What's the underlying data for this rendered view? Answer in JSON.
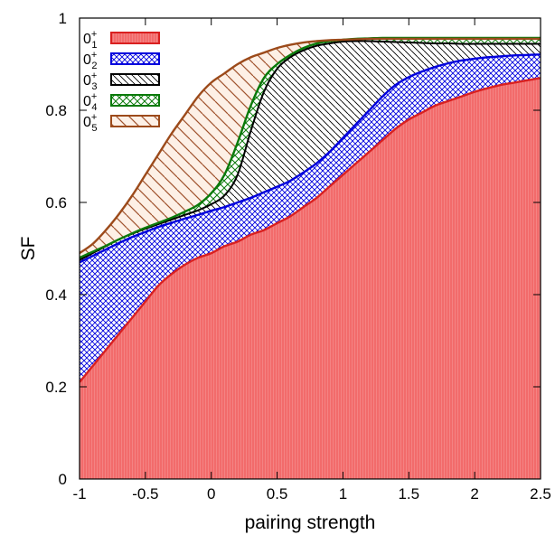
{
  "chart_data": {
    "type": "area",
    "xlabel": "pairing strength",
    "ylabel": "SF",
    "xlim": [
      -1,
      2.5
    ],
    "ylim": [
      0,
      1
    ],
    "xticks": [
      "-1",
      "-0.5",
      "0",
      "0.5",
      "1",
      "1.5",
      "2",
      "2.5"
    ],
    "yticks": [
      "0",
      "0.2",
      "0.4",
      "0.6",
      "0.8",
      "1"
    ],
    "legend_position": "top-left",
    "grid": false,
    "x": [
      -1,
      -0.9,
      -0.8,
      -0.7,
      -0.6,
      -0.5,
      -0.4,
      -0.3,
      -0.2,
      -0.1,
      0,
      0.1,
      0.2,
      0.3,
      0.4,
      0.5,
      0.6,
      0.7,
      0.8,
      0.9,
      1,
      1.1,
      1.2,
      1.3,
      1.4,
      1.5,
      1.6,
      1.7,
      1.8,
      1.9,
      2,
      2.1,
      2.2,
      2.3,
      2.4,
      2.5
    ],
    "series": [
      {
        "name": "0_1^+",
        "legend_base": "0",
        "legend_sup": "+",
        "legend_sub": "1",
        "fill": "#f26b6b",
        "stroke": "#d92020",
        "pattern": "solid",
        "values": [
          0.21,
          0.245,
          0.28,
          0.315,
          0.35,
          0.385,
          0.42,
          0.445,
          0.465,
          0.48,
          0.49,
          0.505,
          0.515,
          0.53,
          0.54,
          0.555,
          0.57,
          0.59,
          0.61,
          0.635,
          0.66,
          0.685,
          0.71,
          0.735,
          0.76,
          0.78,
          0.795,
          0.81,
          0.82,
          0.83,
          0.84,
          0.848,
          0.855,
          0.86,
          0.865,
          0.87
        ]
      },
      {
        "name": "0_2^+",
        "legend_base": "0",
        "legend_sup": "+",
        "legend_sub": "2",
        "fill": "#2f2fe0",
        "stroke": "#0000dd",
        "pattern": "crosshatch",
        "values": [
          0.47,
          0.484,
          0.498,
          0.512,
          0.525,
          0.536,
          0.547,
          0.556,
          0.565,
          0.573,
          0.582,
          0.59,
          0.6,
          0.61,
          0.622,
          0.634,
          0.647,
          0.665,
          0.685,
          0.71,
          0.74,
          0.77,
          0.8,
          0.83,
          0.855,
          0.872,
          0.884,
          0.894,
          0.902,
          0.908,
          0.912,
          0.915,
          0.917,
          0.919,
          0.92,
          0.921
        ]
      },
      {
        "name": "0_3^+",
        "legend_base": "0",
        "legend_sup": "+",
        "legend_sub": "3",
        "fill": "#000000",
        "stroke": "#000000",
        "pattern": "diagonal-dense",
        "values": [
          0.475,
          0.49,
          0.505,
          0.52,
          0.532,
          0.543,
          0.553,
          0.563,
          0.573,
          0.583,
          0.596,
          0.615,
          0.66,
          0.755,
          0.84,
          0.89,
          0.915,
          0.93,
          0.94,
          0.945,
          0.949,
          0.95,
          0.95,
          0.949,
          0.948,
          0.947,
          0.946,
          0.945,
          0.945,
          0.944,
          0.944,
          0.944,
          0.944,
          0.944,
          0.944,
          0.944
        ]
      },
      {
        "name": "0_4^+",
        "legend_base": "0",
        "legend_sup": "+",
        "legend_sub": "4",
        "fill": "#2e8b2e",
        "stroke": "#0a7a0a",
        "pattern": "crosshatch",
        "values": [
          0.48,
          0.493,
          0.506,
          0.52,
          0.533,
          0.545,
          0.556,
          0.567,
          0.58,
          0.595,
          0.62,
          0.66,
          0.73,
          0.81,
          0.87,
          0.9,
          0.92,
          0.935,
          0.945,
          0.95,
          0.953,
          0.955,
          0.956,
          0.957,
          0.957,
          0.957,
          0.957,
          0.957,
          0.957,
          0.957,
          0.957,
          0.957,
          0.957,
          0.957,
          0.957,
          0.957
        ]
      },
      {
        "name": "0_5^+",
        "legend_base": "0",
        "legend_sup": "+",
        "legend_sub": "5",
        "fill": "#a0522d",
        "stroke": "#9c4a1a",
        "pattern": "diagonal-sparse",
        "values": [
          0.49,
          0.51,
          0.54,
          0.575,
          0.615,
          0.66,
          0.705,
          0.75,
          0.79,
          0.83,
          0.86,
          0.88,
          0.9,
          0.915,
          0.925,
          0.935,
          0.942,
          0.947,
          0.95,
          0.952,
          0.953,
          0.954,
          0.955,
          0.955,
          0.955,
          0.955,
          0.955,
          0.955,
          0.955,
          0.955,
          0.955,
          0.955,
          0.955,
          0.955,
          0.955,
          0.955
        ]
      }
    ]
  }
}
